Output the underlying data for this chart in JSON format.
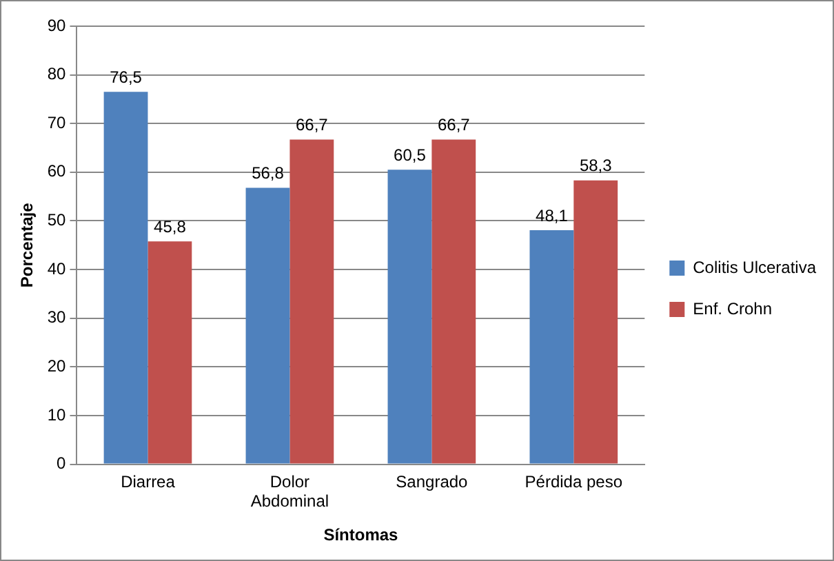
{
  "chart_data": {
    "type": "bar",
    "xlabel": "Síntomas",
    "ylabel": "Porcentaje",
    "categories": [
      "Diarrea",
      "Dolor Abdominal",
      "Sangrado",
      "Pérdida peso"
    ],
    "series": [
      {
        "name": "Colitis Ulcerativa",
        "color": "#4f81bd",
        "values": [
          76.5,
          56.8,
          60.5,
          48.1
        ],
        "value_labels": [
          "76,5",
          "56,8",
          "60,5",
          "48,1"
        ]
      },
      {
        "name": "Enf. Crohn",
        "color": "#c0504d",
        "values": [
          45.8,
          66.7,
          66.7,
          58.3
        ],
        "value_labels": [
          "45,8",
          "66,7",
          "66,7",
          "58,3"
        ]
      }
    ],
    "ylim": [
      0,
      90
    ],
    "yticks": [
      0,
      10,
      20,
      30,
      40,
      50,
      60,
      70,
      80,
      90
    ],
    "grid": "y",
    "legend": "right"
  }
}
